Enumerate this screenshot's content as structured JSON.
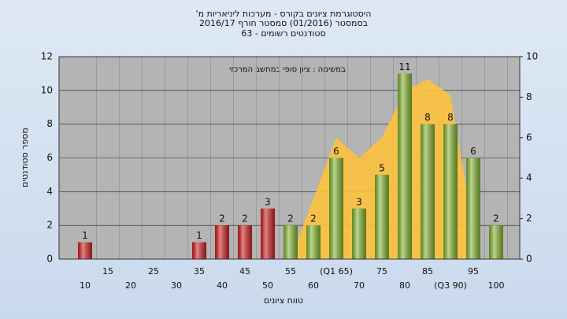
{
  "chart_data": {
    "type": "bar",
    "title": [
      "היסטוגרמת ציונים בקורס - מערכות ליניאריות מ'",
      "בסמסטר (01/2016) סמסטר חורף 2016/17",
      "סטודנטים רשומים - 63"
    ],
    "annotation": "במשימה : ציון סופי במחשב המרכזי",
    "ylabel": "מספר סטודנטים",
    "xlabel": "טווח ציונים",
    "categories": [
      "10",
      "15",
      "20",
      "25",
      "30",
      "35",
      "40",
      "45",
      "50",
      "55",
      "60",
      "(Q1 65)",
      "70",
      "75",
      "80",
      "85",
      "(Q3 90)",
      "95",
      "100"
    ],
    "values": [
      1,
      0,
      0,
      0,
      0,
      1,
      2,
      2,
      3,
      2,
      2,
      6,
      3,
      5,
      11,
      8,
      8,
      6,
      2
    ],
    "colors": [
      "#d42020",
      "#d42020",
      "#d42020",
      "#d42020",
      "#d42020",
      "#d42020",
      "#d42020",
      "#d42020",
      "#d42020",
      "#86b832",
      "#86b832",
      "#86b832",
      "#86b832",
      "#86b832",
      "#86b832",
      "#86b832",
      "#86b832",
      "#86b832",
      "#86b832"
    ],
    "series": [
      {
        "values": [
          null,
          null,
          null,
          null,
          null,
          null,
          null,
          null,
          null,
          0,
          3,
          6,
          5,
          6,
          8.3,
          8.9,
          8.1,
          1.5,
          null
        ],
        "color": "#fcc23c",
        "axis": "y2"
      }
    ],
    "ylim": [
      0,
      12
    ],
    "yticks": [
      0,
      2,
      4,
      6,
      8,
      10,
      12
    ],
    "y2lim": [
      0,
      10
    ],
    "y2ticks": [
      0,
      2,
      4,
      6,
      8,
      10
    ],
    "grid": true
  }
}
